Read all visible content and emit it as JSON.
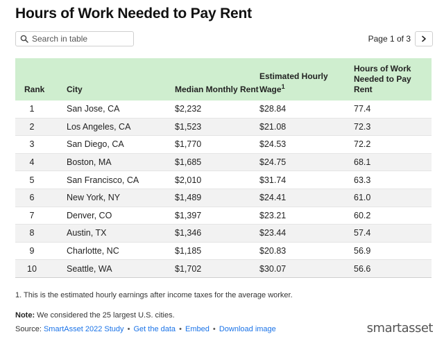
{
  "title": "Hours of Work Needed to Pay Rent",
  "search": {
    "placeholder": "Search in table",
    "value": ""
  },
  "pagination": {
    "label": "Page 1 of 3"
  },
  "table": {
    "headers": {
      "rank": "Rank",
      "city": "City",
      "rent": "Median Monthly Rent",
      "wage": "Estimated Hourly Wage",
      "wage_sup": "1",
      "hours": "Hours of Work Needed to Pay Rent"
    },
    "rows": [
      {
        "rank": "1",
        "city": "San Jose, CA",
        "rent": "$2,232",
        "wage": "$28.84",
        "hours": "77.4"
      },
      {
        "rank": "2",
        "city": "Los Angeles, CA",
        "rent": "$1,523",
        "wage": "$21.08",
        "hours": "72.3"
      },
      {
        "rank": "3",
        "city": "San Diego, CA",
        "rent": "$1,770",
        "wage": "$24.53",
        "hours": "72.2"
      },
      {
        "rank": "4",
        "city": "Boston, MA",
        "rent": "$1,685",
        "wage": "$24.75",
        "hours": "68.1"
      },
      {
        "rank": "5",
        "city": "San Francisco, CA",
        "rent": "$2,010",
        "wage": "$31.74",
        "hours": "63.3"
      },
      {
        "rank": "6",
        "city": "New York, NY",
        "rent": "$1,489",
        "wage": "$24.41",
        "hours": "61.0"
      },
      {
        "rank": "7",
        "city": "Denver, CO",
        "rent": "$1,397",
        "wage": "$23.21",
        "hours": "60.2"
      },
      {
        "rank": "8",
        "city": "Austin, TX",
        "rent": "$1,346",
        "wage": "$23.44",
        "hours": "57.4"
      },
      {
        "rank": "9",
        "city": "Charlotte, NC",
        "rent": "$1,185",
        "wage": "$20.83",
        "hours": "56.9"
      },
      {
        "rank": "10",
        "city": "Seattle, WA",
        "rent": "$1,702",
        "wage": "$30.07",
        "hours": "56.6"
      }
    ]
  },
  "footnote": "1. This is the estimated hourly earnings after income taxes for the average worker.",
  "note": {
    "label": "Note:",
    "text": " We considered the 25 largest U.S. cities."
  },
  "source": {
    "label": "Source: ",
    "link_study": "SmartAsset 2022 Study",
    "link_data": "Get the data",
    "link_embed": "Embed",
    "link_image": "Download image",
    "separator": " • "
  },
  "logo": "smartasset",
  "colors": {
    "header_bg": "#cfeecf",
    "link": "#1a73e8",
    "stripe": "#f2f2f2"
  },
  "icons": {
    "search": "search-icon",
    "next": "chevron-right-icon",
    "logo": "smartasset-logo"
  }
}
